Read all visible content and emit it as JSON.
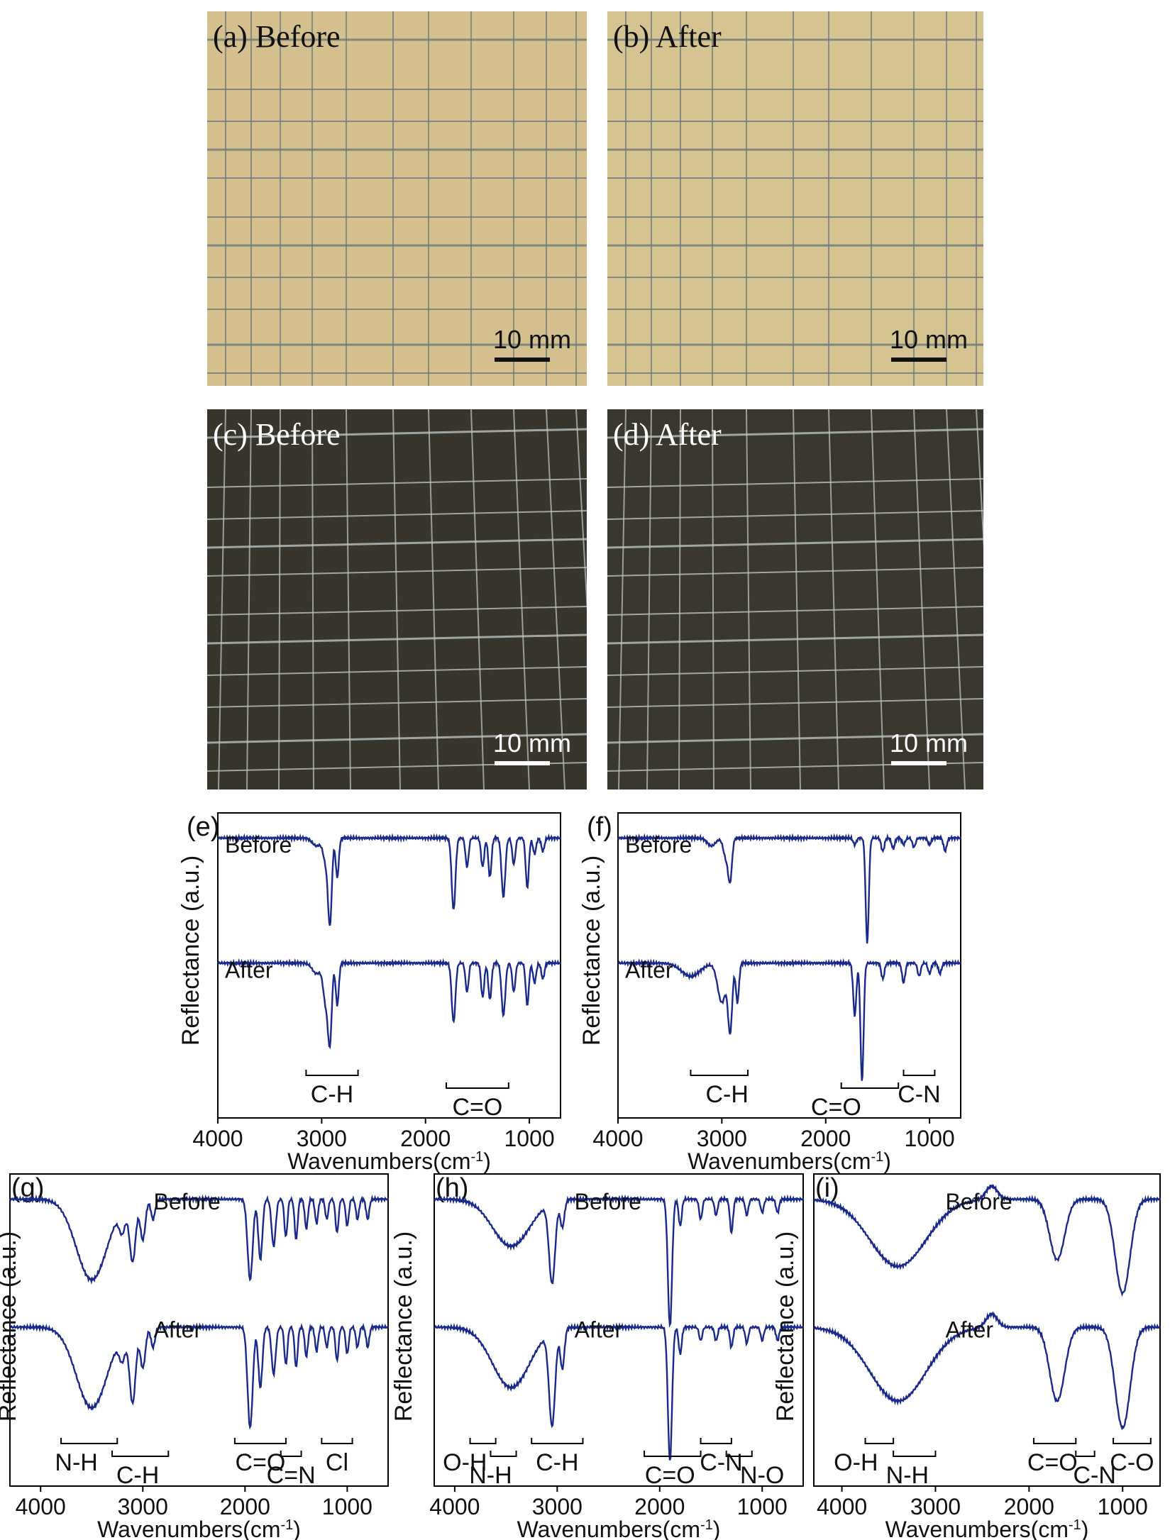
{
  "photos": [
    {
      "label": "(a)",
      "state": "Before",
      "scale": "10 mm",
      "bg": "#d3c08e",
      "line": "#6e7a7c",
      "text": "#111111",
      "bar": "#111111"
    },
    {
      "label": "(b)",
      "state": "After",
      "scale": "10 mm",
      "bg": "#d5c392",
      "line": "#6e7a7c",
      "text": "#111111",
      "bar": "#111111"
    },
    {
      "label": "(c)",
      "state": "Before",
      "scale": "10 mm",
      "bg": "#37352c",
      "line": "#b9c2c0",
      "text": "#ffffff",
      "bar": "#ffffff"
    },
    {
      "label": "(d)",
      "state": "After",
      "scale": "10 mm",
      "bg": "#39372e",
      "line": "#b9c2c0",
      "text": "#ffffff",
      "bar": "#ffffff"
    }
  ],
  "chart_data": [
    {
      "type": "line",
      "panel": "(e)",
      "ylabel": "Reflectance (a.u.)",
      "xlabel": "Wavenumbers(cm",
      "xlabel_sup": "-1",
      "xlabel_tail": ")",
      "xlim": [
        4000,
        700
      ],
      "xticks": [
        4000,
        3000,
        2000,
        1000
      ],
      "series": [
        {
          "name": "Before",
          "baseline": 0.96,
          "peaks": [
            [
              3050,
              0.06,
              40
            ],
            [
              2960,
              0.18,
              25
            ],
            [
              2920,
              0.62,
              18
            ],
            [
              2850,
              0.3,
              15
            ],
            [
              1730,
              0.55,
              18
            ],
            [
              1600,
              0.22,
              15
            ],
            [
              1450,
              0.22,
              15
            ],
            [
              1380,
              0.3,
              15
            ],
            [
              1250,
              0.45,
              18
            ],
            [
              1150,
              0.2,
              15
            ],
            [
              1020,
              0.38,
              15
            ],
            [
              950,
              0.12,
              15
            ],
            [
              870,
              0.1,
              15
            ]
          ]
        },
        {
          "name": "After",
          "baseline": 0.96,
          "peaks": [
            [
              3050,
              0.08,
              40
            ],
            [
              2960,
              0.3,
              25
            ],
            [
              2920,
              0.55,
              18
            ],
            [
              2850,
              0.32,
              15
            ],
            [
              1730,
              0.45,
              18
            ],
            [
              1600,
              0.22,
              15
            ],
            [
              1450,
              0.26,
              15
            ],
            [
              1380,
              0.28,
              15
            ],
            [
              1250,
              0.4,
              18
            ],
            [
              1150,
              0.22,
              15
            ],
            [
              1020,
              0.32,
              15
            ],
            [
              950,
              0.15,
              15
            ],
            [
              870,
              0.12,
              15
            ]
          ]
        }
      ],
      "annotations": [
        {
          "text": "C-H",
          "x": 2900,
          "bracket": [
            3150,
            2650
          ]
        },
        {
          "text": "C=O",
          "x": 1500,
          "bracket": [
            1800,
            1200
          ]
        }
      ]
    },
    {
      "type": "line",
      "panel": "(f)",
      "ylabel": "Reflectance (a.u.)",
      "xlabel": "Wavenumbers(cm",
      "xlabel_sup": "-1",
      "xlabel_tail": ")",
      "xlim": [
        4000,
        700
      ],
      "xticks": [
        4000,
        3000,
        2000,
        1000
      ],
      "series": [
        {
          "name": "Before",
          "baseline": 0.96,
          "peaks": [
            [
              3100,
              0.06,
              40
            ],
            [
              2960,
              0.15,
              25
            ],
            [
              2920,
              0.3,
              18
            ],
            [
              1720,
              0.05,
              15
            ],
            [
              1600,
              0.8,
              15
            ],
            [
              1450,
              0.1,
              15
            ],
            [
              1350,
              0.08,
              15
            ],
            [
              1250,
              0.05,
              15
            ],
            [
              1150,
              0.07,
              15
            ],
            [
              1000,
              0.05,
              15
            ],
            [
              850,
              0.1,
              15
            ]
          ]
        },
        {
          "name": "After",
          "baseline": 0.96,
          "peaks": [
            [
              3300,
              0.1,
              90
            ],
            [
              3000,
              0.3,
              40
            ],
            [
              2920,
              0.5,
              20
            ],
            [
              2850,
              0.3,
              15
            ],
            [
              1720,
              0.4,
              15
            ],
            [
              1650,
              0.9,
              15
            ],
            [
              1450,
              0.12,
              15
            ],
            [
              1250,
              0.15,
              15
            ],
            [
              1100,
              0.1,
              15
            ],
            [
              1000,
              0.08,
              15
            ],
            [
              900,
              0.08,
              15
            ]
          ]
        }
      ],
      "annotations": [
        {
          "text": "C-H",
          "x": 2950,
          "bracket": [
            3300,
            2750
          ]
        },
        {
          "text": "C=O",
          "x": 1900,
          "bracket": [
            1850,
            1300
          ]
        },
        {
          "text": "C-N",
          "x": 1100,
          "bracket": [
            1250,
            950
          ]
        }
      ]
    },
    {
      "type": "line",
      "panel": "(g)",
      "ylabel": "Reflectance (a.u.)",
      "xlabel": "Wavenumbers(cm",
      "xlabel_sup": "-1",
      "xlabel_tail": ")",
      "xlim": [
        4300,
        600
      ],
      "xticks": [
        4000,
        3000,
        2000,
        1000
      ],
      "series": [
        {
          "name": "Before",
          "baseline": 0.96,
          "peaks": [
            [
              3500,
              0.6,
              150
            ],
            [
              3200,
              0.18,
              30
            ],
            [
              3100,
              0.45,
              30
            ],
            [
              3000,
              0.3,
              25
            ],
            [
              2900,
              0.15,
              20
            ],
            [
              1950,
              0.6,
              25
            ],
            [
              1850,
              0.45,
              20
            ],
            [
              1720,
              0.35,
              20
            ],
            [
              1600,
              0.28,
              15
            ],
            [
              1500,
              0.3,
              15
            ],
            [
              1400,
              0.22,
              15
            ],
            [
              1300,
              0.18,
              15
            ],
            [
              1200,
              0.15,
              15
            ],
            [
              1100,
              0.25,
              15
            ],
            [
              1000,
              0.2,
              15
            ],
            [
              900,
              0.15,
              15
            ],
            [
              800,
              0.15,
              15
            ]
          ]
        },
        {
          "name": "After",
          "baseline": 0.96,
          "peaks": [
            [
              3500,
              0.6,
              150
            ],
            [
              3200,
              0.18,
              30
            ],
            [
              3100,
              0.55,
              30
            ],
            [
              3000,
              0.3,
              25
            ],
            [
              2900,
              0.15,
              20
            ],
            [
              1950,
              0.75,
              25
            ],
            [
              1850,
              0.45,
              20
            ],
            [
              1720,
              0.35,
              20
            ],
            [
              1600,
              0.28,
              15
            ],
            [
              1500,
              0.3,
              15
            ],
            [
              1400,
              0.22,
              15
            ],
            [
              1300,
              0.18,
              15
            ],
            [
              1200,
              0.15,
              15
            ],
            [
              1100,
              0.25,
              15
            ],
            [
              1000,
              0.2,
              15
            ],
            [
              900,
              0.15,
              15
            ],
            [
              800,
              0.15,
              15
            ]
          ]
        }
      ],
      "annotations": [
        {
          "text": "N-H",
          "x": 3650,
          "bracket": [
            3800,
            3250
          ]
        },
        {
          "text": "C-H",
          "x": 3050,
          "bracket": [
            3300,
            2750
          ]
        },
        {
          "text": "C=O",
          "x": 1850,
          "bracket": [
            2100,
            1600
          ]
        },
        {
          "text": "C=N",
          "x": 1550,
          "bracket": [
            1650,
            1450
          ]
        },
        {
          "text": "Cl",
          "x": 1100,
          "bracket": [
            1250,
            950
          ]
        }
      ]
    },
    {
      "type": "line",
      "panel": "(h)",
      "ylabel": "Reflectance (a.u.)",
      "xlabel": "Wavenumbers(cm",
      "xlabel_sup": "-1",
      "xlabel_tail": ")",
      "xlim": [
        4200,
        600
      ],
      "xticks": [
        4000,
        3000,
        2000,
        1000
      ],
      "series": [
        {
          "name": "Before",
          "baseline": 0.96,
          "peaks": [
            [
              3450,
              0.35,
              180
            ],
            [
              3050,
              0.6,
              30
            ],
            [
              2950,
              0.2,
              20
            ],
            [
              1900,
              0.95,
              20
            ],
            [
              1800,
              0.2,
              15
            ],
            [
              1600,
              0.15,
              15
            ],
            [
              1450,
              0.12,
              15
            ],
            [
              1300,
              0.25,
              15
            ],
            [
              1150,
              0.12,
              15
            ],
            [
              1000,
              0.1,
              15
            ],
            [
              850,
              0.1,
              15
            ]
          ]
        },
        {
          "name": "After",
          "baseline": 0.96,
          "peaks": [
            [
              3450,
              0.45,
              180
            ],
            [
              3050,
              0.7,
              30
            ],
            [
              2950,
              0.3,
              20
            ],
            [
              1900,
              1.0,
              20
            ],
            [
              1800,
              0.2,
              15
            ],
            [
              1600,
              0.1,
              15
            ],
            [
              1450,
              0.1,
              15
            ],
            [
              1300,
              0.15,
              15
            ],
            [
              1150,
              0.12,
              15
            ],
            [
              1000,
              0.1,
              15
            ],
            [
              850,
              0.1,
              15
            ]
          ]
        }
      ],
      "annotations": [
        {
          "text": "O-H",
          "x": 3900,
          "bracket": [
            3850,
            3600
          ]
        },
        {
          "text": "N-H",
          "x": 3650,
          "bracket": [
            3650,
            3400
          ]
        },
        {
          "text": "C-H",
          "x": 3000,
          "bracket": [
            3250,
            2750
          ]
        },
        {
          "text": "C=O",
          "x": 1900,
          "bracket": [
            2150,
            1600
          ]
        },
        {
          "text": "C-N",
          "x": 1400,
          "bracket": [
            1600,
            1300
          ]
        },
        {
          "text": "N-O",
          "x": 1000,
          "bracket": [
            1350,
            1100
          ]
        }
      ]
    },
    {
      "type": "line",
      "panel": "(i)",
      "ylabel": "Reflectance (a.u.)",
      "xlabel": "Wavenumbers(cm",
      "xlabel_sup": "-1",
      "xlabel_tail": ")",
      "xlim": [
        4300,
        600
      ],
      "xticks": [
        4000,
        3000,
        2000,
        1000
      ],
      "series": [
        {
          "name": "Before",
          "baseline": 0.96,
          "peaks": [
            [
              3400,
              0.5,
              300
            ],
            [
              2400,
              -0.1,
              60
            ],
            [
              1700,
              0.45,
              80
            ],
            [
              1000,
              0.7,
              80
            ]
          ]
        },
        {
          "name": "After",
          "baseline": 0.96,
          "peaks": [
            [
              3400,
              0.55,
              300
            ],
            [
              2400,
              -0.1,
              60
            ],
            [
              1700,
              0.55,
              80
            ],
            [
              1000,
              0.75,
              80
            ]
          ]
        }
      ],
      "annotations": [
        {
          "text": "O-H",
          "x": 3850,
          "bracket": [
            3750,
            3450
          ]
        },
        {
          "text": "N-H",
          "x": 3300,
          "bracket": [
            3450,
            3000
          ]
        },
        {
          "text": "C=O",
          "x": 1750,
          "bracket": [
            1950,
            1500
          ]
        },
        {
          "text": "C-N",
          "x": 1300,
          "bracket": [
            1500,
            1300
          ]
        },
        {
          "text": "C-O",
          "x": 900,
          "bracket": [
            1100,
            700
          ]
        }
      ]
    }
  ]
}
